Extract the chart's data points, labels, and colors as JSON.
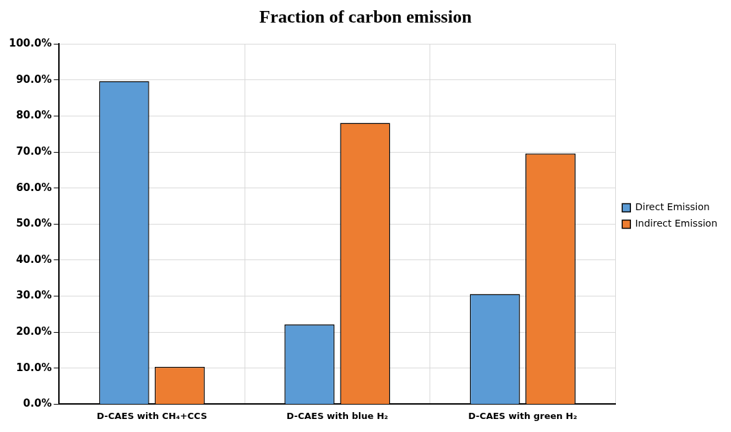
{
  "chart_data": {
    "type": "bar",
    "title": "Fraction of carbon emission",
    "categories": [
      "D-CAES with CH₄+CCS",
      "D-CAES with blue H₂",
      "D-CAES with green H₂"
    ],
    "series": [
      {
        "name": "Direct Emission",
        "color": "#5b9bd5",
        "values": [
          89.7,
          22.1,
          30.6
        ]
      },
      {
        "name": "Indirect Emission",
        "color": "#ed7d31",
        "values": [
          10.4,
          78.1,
          69.6
        ]
      }
    ],
    "ylim": [
      0,
      100
    ],
    "yticks": [
      {
        "value": 0,
        "label": "0.0%"
      },
      {
        "value": 10,
        "label": "10.0%"
      },
      {
        "value": 20,
        "label": "20.0%"
      },
      {
        "value": 30,
        "label": "30.0%"
      },
      {
        "value": 40,
        "label": "40.0%"
      },
      {
        "value": 50,
        "label": "50.0%"
      },
      {
        "value": 60,
        "label": "60.0%"
      },
      {
        "value": 70,
        "label": "70.0%"
      },
      {
        "value": 80,
        "label": "80.0%"
      },
      {
        "value": 90,
        "label": "90.0%"
      },
      {
        "value": 100,
        "label": "100.0%"
      }
    ],
    "grid": true,
    "legend": "right"
  }
}
